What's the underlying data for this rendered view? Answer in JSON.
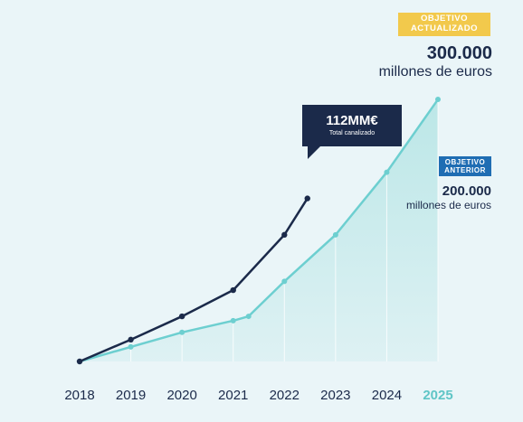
{
  "colors": {
    "background": "#eaf5f8",
    "total_line": "#1b2a4a",
    "previous_target_line": "#6dcfd0",
    "area_fill": "#b9e6e6",
    "badge_updated": "#f2c94c",
    "badge_previous": "#1f6db3",
    "highlight_year": "#5fc5c6"
  },
  "labels": {
    "updated_badge": "OBJETIVO ACTUALIZADO",
    "updated_value": "300.000",
    "updated_unit": "millones de euros",
    "previous_badge": "OBJETIVO ANTERIOR",
    "previous_value": "200.000",
    "previous_unit": "millones de euros",
    "callout_value": "112MM€",
    "callout_label": "Total canalizado"
  },
  "chart_data": {
    "type": "line",
    "categories": [
      "2018",
      "2019",
      "2020",
      "2021",
      "2022",
      "2023",
      "2024",
      "2025"
    ],
    "highlight_category": "2025",
    "grid": false,
    "legend": "none",
    "series": [
      {
        "key": "total",
        "color": "#1b2a4a",
        "points": [
          [
            2018,
            0
          ],
          [
            2019,
            15
          ],
          [
            2020,
            31
          ],
          [
            2021,
            49
          ],
          [
            2022,
            87
          ],
          [
            2022.45,
            112
          ]
        ]
      },
      {
        "key": "target",
        "color": "#6dcfd0",
        "area": true,
        "points": [
          [
            2018,
            0
          ],
          [
            2019,
            10
          ],
          [
            2020,
            20
          ],
          [
            2021,
            28
          ],
          [
            2021.3,
            31
          ],
          [
            2022,
            55
          ],
          [
            2023,
            87
          ],
          [
            2024,
            130
          ],
          [
            2025,
            180
          ]
        ]
      }
    ],
    "ylim": [
      0,
      185
    ]
  }
}
